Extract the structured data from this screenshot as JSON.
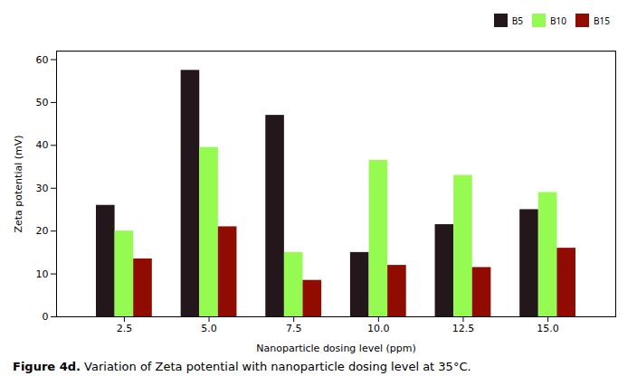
{
  "chart_data": {
    "type": "bar",
    "x": [
      2.5,
      5.0,
      7.5,
      10.0,
      12.5,
      15.0
    ],
    "series": [
      {
        "name": "B5",
        "values": [
          26.0,
          57.5,
          47.0,
          15.0,
          21.5,
          25.0
        ]
      },
      {
        "name": "B10",
        "values": [
          20.0,
          39.5,
          15.0,
          36.5,
          33.0,
          29.0
        ]
      },
      {
        "name": "B15",
        "values": [
          13.5,
          21.0,
          8.5,
          12.0,
          11.5,
          16.0
        ]
      }
    ],
    "xlim": [
      0.5,
      17.0
    ],
    "xticks": [
      {
        "value": 2.5,
        "label": "2.5"
      },
      {
        "value": 5.0,
        "label": "5.0"
      },
      {
        "value": 7.5,
        "label": "7.5"
      },
      {
        "value": 10.0,
        "label": "10.0"
      },
      {
        "value": 12.5,
        "label": "12.5"
      },
      {
        "value": 15.0,
        "label": "15.0"
      }
    ],
    "ylim": [
      0,
      62
    ],
    "yticks": [
      0,
      10,
      20,
      30,
      40,
      50,
      60
    ],
    "xlabel": "Nanoparticle dosing level (ppm)",
    "ylabel": "Zeta potential (mV)",
    "caption_label": "Figure 4d.",
    "caption": "Variation of Zeta potential with nanoparticle dosing level at 35°C.",
    "legend": "upper right",
    "grid": false
  }
}
